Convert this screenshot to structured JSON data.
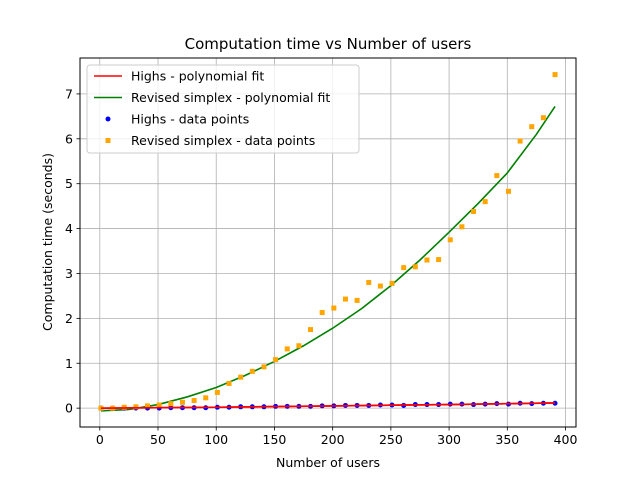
{
  "chart_data": {
    "type": "scatter",
    "title": "Computation time vs Number of users",
    "xlabel": "Number of users",
    "ylabel": "Computation time (seconds)",
    "xlim": [
      -17,
      409
    ],
    "ylim": [
      -0.42,
      7.8
    ],
    "xticks": [
      0,
      50,
      100,
      150,
      200,
      250,
      300,
      350,
      400
    ],
    "yticks": [
      0,
      1,
      2,
      3,
      4,
      5,
      6,
      7
    ],
    "grid": true,
    "legend_position": "top-left",
    "series": [
      {
        "name": "Highs - polynomial fit",
        "kind": "line",
        "color": "#ff0000",
        "x": [
          1,
          50,
          100,
          150,
          200,
          250,
          300,
          350,
          391
        ],
        "y": [
          0.0,
          0.01,
          0.02,
          0.035,
          0.05,
          0.065,
          0.08,
          0.1,
          0.115
        ]
      },
      {
        "name": "Revised simplex - polynomial fit",
        "kind": "line",
        "color": "#008000",
        "x": [
          1,
          25,
          50,
          75,
          100,
          125,
          150,
          175,
          200,
          225,
          250,
          275,
          300,
          325,
          350,
          375,
          391
        ],
        "y": [
          -0.06,
          -0.03,
          0.08,
          0.25,
          0.46,
          0.73,
          1.04,
          1.39,
          1.78,
          2.22,
          2.73,
          3.3,
          3.92,
          4.56,
          5.24,
          6.1,
          6.72
        ]
      },
      {
        "name": "Highs - data points",
        "kind": "points",
        "marker": "circle",
        "color": "#0000ff",
        "x": [
          1,
          11,
          21,
          31,
          41,
          51,
          61,
          71,
          81,
          91,
          101,
          111,
          121,
          131,
          141,
          151,
          161,
          171,
          181,
          191,
          201,
          211,
          221,
          231,
          241,
          251,
          261,
          271,
          281,
          291,
          301,
          311,
          321,
          331,
          341,
          351,
          361,
          371,
          381,
          391
        ],
        "y": [
          0.0,
          0.0,
          0.0,
          0.0,
          0.0,
          0.0,
          0.01,
          0.01,
          0.01,
          0.01,
          0.02,
          0.02,
          0.03,
          0.03,
          0.03,
          0.04,
          0.04,
          0.04,
          0.04,
          0.05,
          0.05,
          0.06,
          0.06,
          0.06,
          0.07,
          0.07,
          0.06,
          0.08,
          0.08,
          0.08,
          0.09,
          0.09,
          0.08,
          0.09,
          0.1,
          0.09,
          0.11,
          0.1,
          0.11,
          0.11
        ]
      },
      {
        "name": "Revised simplex - data points",
        "kind": "points",
        "marker": "square",
        "color": "#ffa500",
        "x": [
          1,
          11,
          21,
          31,
          41,
          51,
          61,
          71,
          81,
          91,
          101,
          111,
          121,
          131,
          141,
          151,
          161,
          171,
          181,
          191,
          201,
          211,
          221,
          231,
          241,
          251,
          261,
          271,
          281,
          291,
          301,
          311,
          321,
          331,
          341,
          351,
          361,
          371,
          381,
          391
        ],
        "y": [
          0.0,
          0.0,
          0.02,
          0.03,
          0.05,
          0.07,
          0.1,
          0.13,
          0.17,
          0.23,
          0.35,
          0.55,
          0.69,
          0.82,
          0.92,
          1.08,
          1.32,
          1.39,
          1.75,
          2.13,
          2.23,
          2.43,
          2.4,
          2.8,
          2.72,
          2.78,
          3.13,
          3.15,
          3.3,
          3.31,
          3.75,
          4.04,
          4.38,
          4.6,
          5.18,
          4.83,
          5.95,
          6.27,
          6.47,
          7.43
        ]
      }
    ]
  }
}
